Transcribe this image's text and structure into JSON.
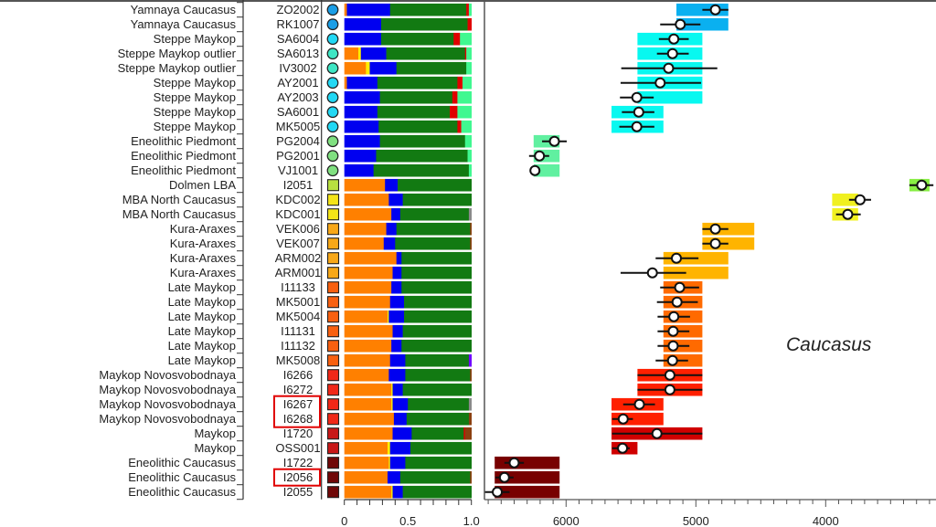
{
  "chart_data": {
    "type": "bar",
    "title": "",
    "region_label": "Caucasus",
    "component_colors": {
      "orange": "#ff8000",
      "yellow": "#ffee00",
      "blue": "#0000f0",
      "green": "#127a12",
      "red": "#e00000",
      "lightgreen": "#40f890",
      "brown": "#8b4010",
      "gray": "#8a8a8a",
      "purple": "#7000ff"
    },
    "component_order": [
      "orange",
      "yellow",
      "blue",
      "green",
      "red",
      "lightgreen",
      "brown",
      "gray",
      "purple"
    ],
    "ancestry_axis": {
      "range": [
        0,
        1
      ],
      "tick_labels": [
        "0",
        "0.5",
        "1.0"
      ],
      "tick_values": [
        0,
        0.5,
        1.0
      ],
      "minor_step": 0.1
    },
    "date_axis": {
      "unit": "years BP (calBCE scale)",
      "range": [
        6700,
        3200
      ],
      "tick_labels": [
        "6000",
        "5000",
        "4000"
      ],
      "tick_values": [
        6000,
        5000,
        4000
      ],
      "minor_step": 100
    },
    "highlight_color": "#e00000",
    "rows": [
      {
        "group": "Yamnaya Caucasus",
        "id": "ZO2002",
        "marker": "circle",
        "marker_color": "#1a9ee6",
        "box_color": "#0ab0f0",
        "anc": {
          "orange": 0.02,
          "blue": 0.34,
          "green": 0.6,
          "red": 0.02,
          "lightgreen": 0.02
        },
        "box": [
          5150,
          4750
        ],
        "point": 4850,
        "ci": [
          4950,
          4750
        ]
      },
      {
        "group": "Yamnaya Caucasus",
        "id": "RK1007",
        "marker": "circle",
        "marker_color": "#1a9ee6",
        "box_color": "#0ab0f0",
        "anc": {
          "blue": 0.29,
          "green": 0.68,
          "red": 0.03
        },
        "box": [
          5150,
          4750
        ],
        "point": 5120,
        "ci": [
          5275,
          4965
        ]
      },
      {
        "group": "Steppe Maykop",
        "id": "SA6004",
        "marker": "circle",
        "marker_color": "#22d8f4",
        "box_color": "#08f8f0",
        "anc": {
          "blue": 0.29,
          "green": 0.57,
          "red": 0.05,
          "lightgreen": 0.09
        },
        "box": [
          5450,
          4950
        ],
        "point": 5170,
        "ci": [
          5285,
          5055
        ]
      },
      {
        "group": "Steppe Maykop outlier",
        "id": "SA6013",
        "marker": "circle",
        "marker_color": "#3ee6c4",
        "box_color": "#08f8f0",
        "anc": {
          "orange": 0.11,
          "yellow": 0.02,
          "blue": 0.2,
          "green": 0.62,
          "red": 0.01,
          "lightgreen": 0.04
        },
        "box": [
          5450,
          4950
        ],
        "point": 5180,
        "ci": [
          5300,
          5055
        ]
      },
      {
        "group": "Steppe Maykop outlier",
        "id": "IV3002",
        "marker": "circle",
        "marker_color": "#3ee6c4",
        "box_color": "#08f8f0",
        "anc": {
          "orange": 0.17,
          "yellow": 0.03,
          "blue": 0.21,
          "green": 0.55,
          "lightgreen": 0.04
        },
        "box": [
          5450,
          4950
        ],
        "point": 5210,
        "ci": [
          5575,
          4835
        ]
      },
      {
        "group": "Steppe Maykop",
        "id": "AY2001",
        "marker": "circle",
        "marker_color": "#22d8f4",
        "box_color": "#08f8f0",
        "anc": {
          "orange": 0.02,
          "blue": 0.24,
          "green": 0.63,
          "red": 0.04,
          "lightgreen": 0.07
        },
        "box": [
          5450,
          4950
        ],
        "point": 5275,
        "ci": [
          5580,
          4960
        ]
      },
      {
        "group": "Steppe Maykop",
        "id": "AY2003",
        "marker": "circle",
        "marker_color": "#22d8f4",
        "box_color": "#08f8f0",
        "anc": {
          "blue": 0.28,
          "green": 0.57,
          "red": 0.04,
          "lightgreen": 0.11
        },
        "box": [
          5450,
          4950
        ],
        "point": 5455,
        "ci": [
          5585,
          5325
        ]
      },
      {
        "group": "Steppe Maykop",
        "id": "SA6001",
        "marker": "circle",
        "marker_color": "#22d8f4",
        "box_color": "#08f8f0",
        "anc": {
          "blue": 0.26,
          "green": 0.57,
          "red": 0.06,
          "lightgreen": 0.11
        },
        "box": [
          5650,
          5250
        ],
        "point": 5440,
        "ci": [
          5570,
          5320
        ]
      },
      {
        "group": "Steppe Maykop",
        "id": "MK5005",
        "marker": "circle",
        "marker_color": "#22d8f4",
        "box_color": "#08f8f0",
        "anc": {
          "blue": 0.27,
          "green": 0.62,
          "red": 0.03,
          "lightgreen": 0.08
        },
        "box": [
          5650,
          5250
        ],
        "point": 5455,
        "ci": [
          5590,
          5320
        ]
      },
      {
        "group": "Eneolithic Piedmont",
        "id": "PG2004",
        "marker": "circle",
        "marker_color": "#80e080",
        "box_color": "#60f0a0",
        "anc": {
          "blue": 0.28,
          "green": 0.67,
          "lightgreen": 0.05
        },
        "box": [
          6250,
          6050
        ],
        "point": 6090,
        "ci": [
          6185,
          5995
        ]
      },
      {
        "group": "Eneolithic Piedmont",
        "id": "PG2001",
        "marker": "circle",
        "marker_color": "#80e080",
        "box_color": "#60f0a0",
        "anc": {
          "blue": 0.25,
          "green": 0.72,
          "lightgreen": 0.03
        },
        "box": [
          6250,
          6050
        ],
        "point": 6205,
        "ci": [
          6285,
          6130
        ]
      },
      {
        "group": "Eneolithic Piedmont",
        "id": "VJ1001",
        "marker": "circle",
        "marker_color": "#80e080",
        "box_color": "#60f0a0",
        "anc": {
          "blue": 0.23,
          "green": 0.75,
          "lightgreen": 0.02
        },
        "box": [
          6250,
          6050
        ],
        "point": 6240,
        "ci": null
      },
      {
        "group": "Dolmen LBA",
        "id": "I2051",
        "marker": "square",
        "marker_color": "#b8e040",
        "box_color": "#88ee44",
        "anc": {
          "orange": 0.32,
          "blue": 0.1,
          "green": 0.58
        },
        "box": [
          3355,
          3200
        ],
        "point": 3260,
        "ci": [
          3355,
          3170
        ]
      },
      {
        "group": "MBA North Caucasus",
        "id": "KDC002",
        "marker": "square",
        "marker_color": "#f4e418",
        "box_color": "#f0f020",
        "anc": {
          "orange": 0.35,
          "blue": 0.11,
          "green": 0.54
        },
        "box": [
          3950,
          3750
        ],
        "point": 3735,
        "ci": [
          3820,
          3650
        ]
      },
      {
        "group": "MBA North Caucasus",
        "id": "KDC001",
        "marker": "square",
        "marker_color": "#f4e418",
        "box_color": "#f0f020",
        "anc": {
          "orange": 0.37,
          "blue": 0.07,
          "green": 0.54,
          "gray": 0.02
        },
        "box": [
          3950,
          3750
        ],
        "point": 3830,
        "ci": [
          3920,
          3730
        ]
      },
      {
        "group": "Kura-Araxes",
        "id": "VEK006",
        "marker": "square",
        "marker_color": "#f8a818",
        "box_color": "#ffb400",
        "anc": {
          "orange": 0.33,
          "blue": 0.08,
          "green": 0.58,
          "brown": 0.01
        },
        "box": [
          4950,
          4550
        ],
        "point": 4850,
        "ci": [
          4950,
          4750
        ]
      },
      {
        "group": "Kura-Araxes",
        "id": "VEK007",
        "marker": "square",
        "marker_color": "#f8a818",
        "box_color": "#ffb400",
        "anc": {
          "orange": 0.31,
          "blue": 0.09,
          "green": 0.59,
          "brown": 0.01
        },
        "box": [
          4950,
          4550
        ],
        "point": 4850,
        "ci": [
          4950,
          4750
        ]
      },
      {
        "group": "Kura-Araxes",
        "id": "ARM002",
        "marker": "square",
        "marker_color": "#f8a818",
        "box_color": "#ffb400",
        "anc": {
          "orange": 0.41,
          "blue": 0.04,
          "green": 0.55
        },
        "box": [
          5250,
          4750
        ],
        "point": 5150,
        "ci": [
          5310,
          4980
        ]
      },
      {
        "group": "Kura-Araxes",
        "id": "ARM001",
        "marker": "square",
        "marker_color": "#f8a818",
        "box_color": "#ffb400",
        "anc": {
          "orange": 0.38,
          "blue": 0.07,
          "green": 0.55
        },
        "box": [
          5250,
          4750
        ],
        "point": 5335,
        "ci": [
          5580,
          5075
        ]
      },
      {
        "group": "Late Maykop",
        "id": "I11133",
        "marker": "square",
        "marker_color": "#f86010",
        "box_color": "#ff6a00",
        "anc": {
          "orange": 0.37,
          "blue": 0.08,
          "green": 0.55
        },
        "box": [
          5250,
          4950
        ],
        "point": 5125,
        "ci": [
          5275,
          4975
        ]
      },
      {
        "group": "Late Maykop",
        "id": "MK5001",
        "marker": "square",
        "marker_color": "#f86010",
        "box_color": "#ff6a00",
        "anc": {
          "orange": 0.36,
          "blue": 0.11,
          "green": 0.53
        },
        "box": [
          5250,
          4950
        ],
        "point": 5145,
        "ci": [
          5300,
          4985
        ]
      },
      {
        "group": "Late Maykop",
        "id": "MK5004",
        "marker": "square",
        "marker_color": "#f86010",
        "box_color": "#ff6a00",
        "anc": {
          "orange": 0.34,
          "yellow": 0.01,
          "blue": 0.12,
          "green": 0.53
        },
        "box": [
          5250,
          4950
        ],
        "point": 5170,
        "ci": [
          5295,
          5045
        ]
      },
      {
        "group": "Late Maykop",
        "id": "I11131",
        "marker": "square",
        "marker_color": "#f86010",
        "box_color": "#ff6a00",
        "anc": {
          "orange": 0.38,
          "blue": 0.08,
          "green": 0.54
        },
        "box": [
          5250,
          4950
        ],
        "point": 5175,
        "ci": [
          5295,
          5050
        ]
      },
      {
        "group": "Late Maykop",
        "id": "I11132",
        "marker": "square",
        "marker_color": "#f86010",
        "box_color": "#ff6a00",
        "anc": {
          "orange": 0.37,
          "blue": 0.08,
          "green": 0.55
        },
        "box": [
          5250,
          4950
        ],
        "point": 5175,
        "ci": [
          5295,
          5050
        ]
      },
      {
        "group": "Late Maykop",
        "id": "MK5008",
        "marker": "square",
        "marker_color": "#f86010",
        "box_color": "#ff6a00",
        "anc": {
          "orange": 0.36,
          "blue": 0.12,
          "green": 0.5,
          "purple": 0.02
        },
        "box": [
          5250,
          4950
        ],
        "point": 5180,
        "ci": [
          5310,
          5060
        ]
      },
      {
        "group": "Maykop Novosvobodnaya",
        "id": "I6266",
        "marker": "square",
        "marker_color": "#f02818",
        "box_color": "#ff2000",
        "anc": {
          "orange": 0.35,
          "blue": 0.13,
          "green": 0.51,
          "brown": 0.01
        },
        "box": [
          5450,
          4950
        ],
        "point": 5200,
        "ci": [
          5450,
          4950
        ]
      },
      {
        "group": "Maykop Novosvobodnaya",
        "id": "I6272",
        "marker": "square",
        "marker_color": "#f02818",
        "box_color": "#ff2000",
        "anc": {
          "orange": 0.37,
          "yellow": 0.01,
          "blue": 0.08,
          "green": 0.54
        },
        "box": [
          5450,
          4950
        ],
        "point": 5200,
        "ci": [
          5450,
          4950
        ]
      },
      {
        "group": "Maykop Novosvobodnaya",
        "id": "I6267",
        "marker": "square",
        "marker_color": "#f02818",
        "box_color": "#ff2000",
        "anc": {
          "orange": 0.37,
          "yellow": 0.01,
          "blue": 0.12,
          "green": 0.48,
          "gray": 0.02
        },
        "box": [
          5650,
          5250
        ],
        "point": 5435,
        "ci": [
          5560,
          5315
        ],
        "highlight": "a"
      },
      {
        "group": "Maykop Novosvobodnaya",
        "id": "I6268",
        "marker": "square",
        "marker_color": "#f02818",
        "box_color": "#ff2000",
        "anc": {
          "orange": 0.39,
          "blue": 0.1,
          "green": 0.49,
          "brown": 0.02
        },
        "box": [
          5650,
          5250
        ],
        "point": 5560,
        "ci": [
          5645,
          5485
        ],
        "highlight": "a"
      },
      {
        "group": "Maykop",
        "id": "I1720",
        "marker": "square",
        "marker_color": "#c81818",
        "box_color": "#d00000",
        "anc": {
          "orange": 0.38,
          "blue": 0.15,
          "green": 0.41,
          "red": 0.01,
          "brown": 0.05
        },
        "box": [
          5650,
          4950
        ],
        "point": 5300,
        "ci": [
          5645,
          4950
        ]
      },
      {
        "group": "Maykop",
        "id": "OSS001",
        "marker": "square",
        "marker_color": "#c81818",
        "box_color": "#d00000",
        "anc": {
          "orange": 0.34,
          "yellow": 0.02,
          "blue": 0.16,
          "green": 0.48
        },
        "box": [
          5650,
          5450
        ],
        "point": 5565,
        "ci": [
          5645,
          5510
        ]
      },
      {
        "group": "Eneolithic Caucasus",
        "id": "I1722",
        "marker": "square",
        "marker_color": "#700808",
        "box_color": "#780000",
        "anc": {
          "orange": 0.35,
          "yellow": 0.01,
          "blue": 0.12,
          "green": 0.52
        },
        "box": [
          6550,
          6050
        ],
        "point": 6400,
        "ci": [
          6475,
          6325
        ]
      },
      {
        "group": "Eneolithic Caucasus",
        "id": "I2056",
        "marker": "square",
        "marker_color": "#700808",
        "box_color": "#780000",
        "anc": {
          "orange": 0.34,
          "blue": 0.1,
          "green": 0.55,
          "brown": 0.01
        },
        "box": [
          6550,
          6050
        ],
        "point": 6475,
        "ci": [
          6545,
          6405
        ],
        "highlight": "b"
      },
      {
        "group": "Eneolithic Caucasus",
        "id": "I2055",
        "marker": "square",
        "marker_color": "#700808",
        "box_color": "#780000",
        "anc": {
          "orange": 0.37,
          "yellow": 0.01,
          "blue": 0.08,
          "green": 0.54
        },
        "box": [
          6550,
          6050
        ],
        "point": 6530,
        "ci": [
          6630,
          6435
        ]
      }
    ]
  }
}
